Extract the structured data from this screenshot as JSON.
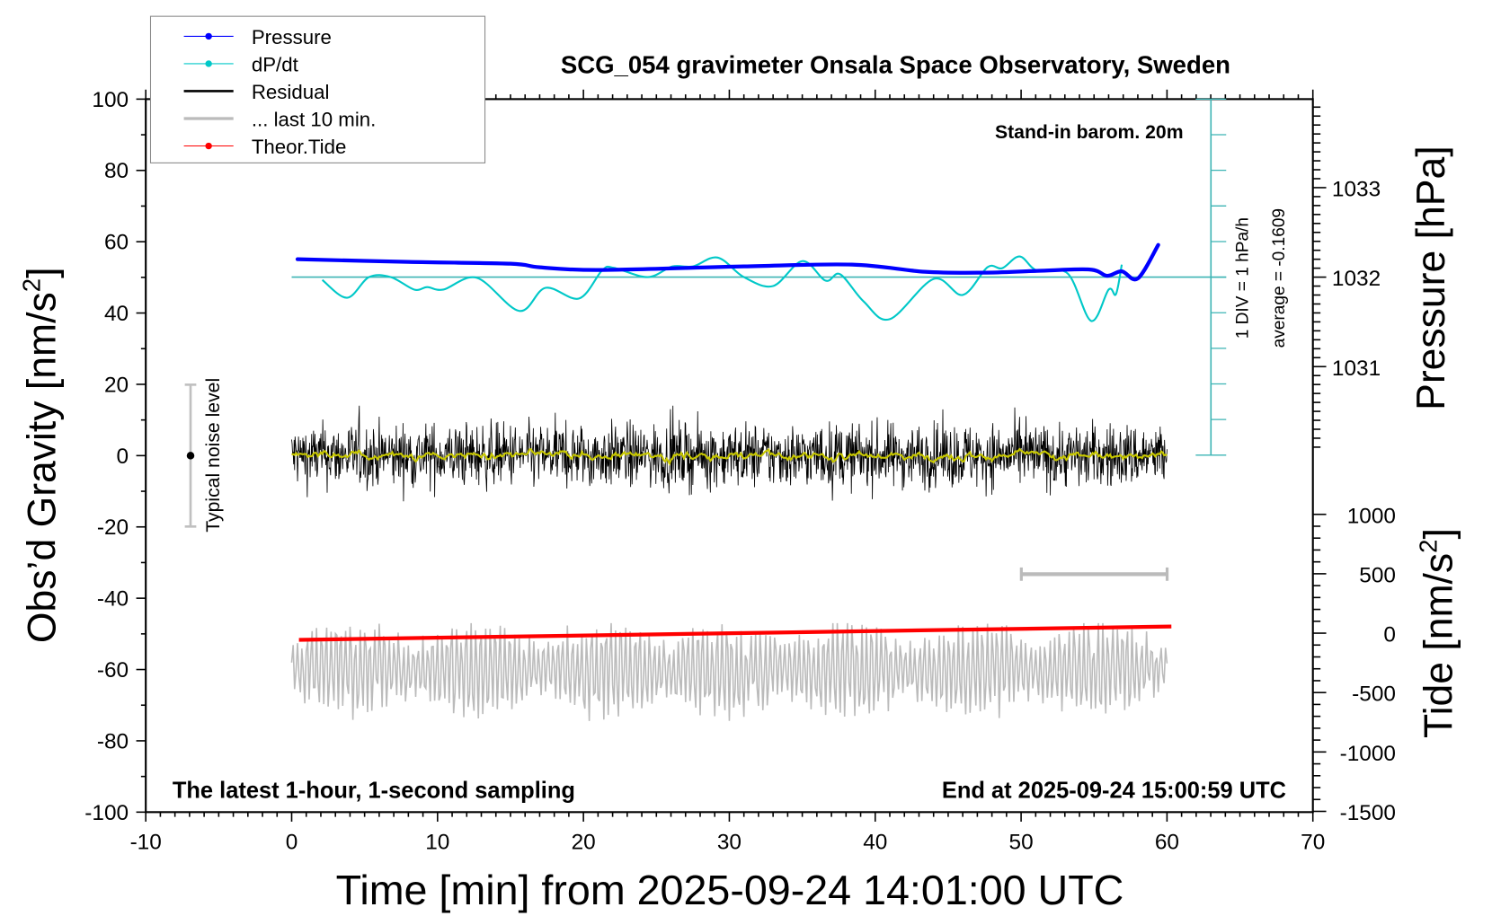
{
  "chart_data": {
    "type": "line",
    "title": "SCG_054 gravimeter Onsala Space Observatory, Sweden",
    "subtitle_left": "The latest 1-hour, 1-second sampling",
    "subtitle_right": "End at 2025-09-24 15:00:59 UTC",
    "barometer_note": "Stand-in barom. 20m",
    "xlabel": "Time [min] from 2025-09-24 14:01:00 UTC",
    "ylabel_left_pre": "Obs’d Gravity [nm/s",
    "ylabel_left_sup": "2",
    "ylabel_left_post": "]",
    "ylabel_right_pressure": "Pressure [hPa]",
    "ylabel_right_tide_pre": "Tide [nm/s",
    "ylabel_right_tide_sup": "2",
    "ylabel_right_tide_post": "]",
    "xlim": [
      -10,
      70
    ],
    "ylim": [
      -100,
      100
    ],
    "pressure_lim_ref": {
      "value": 1032,
      "gravity_equiv": 50,
      "units_per_hpa": 25
    },
    "tide_lim": [
      -1500,
      1000
    ],
    "x_ticks": [
      "-10",
      "0",
      "10",
      "20",
      "30",
      "40",
      "50",
      "60",
      "70"
    ],
    "y_ticks": [
      "100",
      "80",
      "60",
      "40",
      "20",
      "0",
      "-20",
      "-40",
      "-60",
      "-80",
      "-100"
    ],
    "pressure_ticks": [
      "1033",
      "1032",
      "1031"
    ],
    "tide_ticks": [
      "1000",
      "500",
      "0",
      "-500",
      "-1000",
      "-1500"
    ],
    "dpdt_scale_label": "1 DIV = 1 hPa/h",
    "dpdt_average_label": "average = -0.1609",
    "noise_level_label": "Typical noise level",
    "noise_level_range": [
      -20,
      20
    ],
    "last10_span_minutes": [
      50,
      60
    ],
    "legend": [
      {
        "label": "Pressure",
        "color": "#0000ff",
        "marker": true
      },
      {
        "label": "dP/dt",
        "color": "#00c8c8",
        "marker": true
      },
      {
        "label": "Residual",
        "color": "#000000",
        "marker": false
      },
      {
        "label": "... last 10 min.",
        "color": "#bbbbbb",
        "marker": false
      },
      {
        "label": "Theor.Tide",
        "color": "#ff0000",
        "marker": true
      }
    ],
    "series": {
      "pressure": {
        "name": "Pressure",
        "units": "hPa",
        "color": "#0000ff",
        "x": [
          0.4,
          8,
          15,
          17,
          21.1,
          31,
          38.4,
          43.4,
          47.4,
          51.1,
          54.7,
          55.9,
          56.9,
          58,
          59.4
        ],
        "y": [
          1032.2,
          1032.17,
          1032.15,
          1032.11,
          1032.08,
          1032.12,
          1032.14,
          1032.06,
          1032.05,
          1032.07,
          1032.085,
          1032.015,
          1032.065,
          1031.985,
          1032.36
        ]
      },
      "dpdt": {
        "name": "dP/dt",
        "units": "hPa/h",
        "color": "#00c8c8",
        "x": [
          2.1,
          3.8,
          5.3,
          6.8,
          8.4,
          9.3,
          10.4,
          12.7,
          15.6,
          17.4,
          19.7,
          21.3,
          22.1,
          24.4,
          26.1,
          27.5,
          29.2,
          31,
          33,
          35,
          36.6,
          37.6,
          39.2,
          41,
          44,
          46,
          47.7,
          48.7,
          49.9,
          51.1,
          53.2,
          54.8,
          56,
          56.5,
          56.9
        ],
        "y": [
          -0.08,
          -0.58,
          0,
          0,
          -0.35,
          -0.28,
          -0.35,
          -0.02,
          -0.95,
          -0.3,
          -0.6,
          0.2,
          0.26,
          0,
          0.3,
          0.3,
          0.55,
          0,
          -0.25,
          0.45,
          -0.1,
          0.08,
          -0.68,
          -1.18,
          -0.05,
          -0.5,
          0.28,
          0.25,
          0.58,
          0.18,
          0.1,
          -1.23,
          -0.35,
          -0.48,
          0.35
        ]
      },
      "residual": {
        "name": "Residual",
        "units": "nm/s2",
        "color": "#000000",
        "smoothed_color": "#c8c800",
        "x_range": [
          0,
          60
        ],
        "typical_amplitude": 10,
        "min": -19,
        "max": 14
      },
      "last10": {
        "name": "... last 10 min.",
        "color": "#bbbbbb",
        "offset": -60,
        "x_range": [
          0,
          60
        ],
        "min": -80,
        "max": -47
      },
      "tide": {
        "name": "Theor.Tide",
        "units": "nm/s2",
        "color": "#ff0000",
        "x": [
          0.5,
          60.3
        ],
        "y": [
          -56,
          56
        ]
      }
    }
  }
}
